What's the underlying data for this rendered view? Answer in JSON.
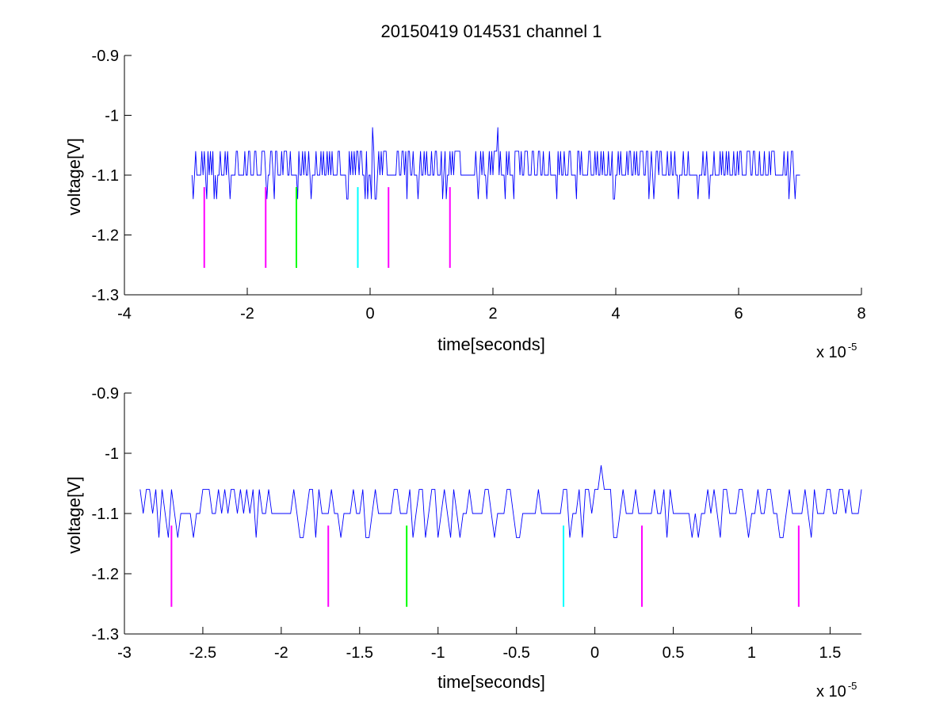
{
  "figure_title": "20150419 014531 channel 1",
  "colors": {
    "signal": "#0000ff",
    "magenta": "#ff00ff",
    "green": "#00ff00",
    "cyan": "#00ffff",
    "axis": "#000000",
    "background": "#ffffff"
  },
  "chart_data": [
    {
      "type": "line",
      "title": "20150419 014531 channel 1",
      "xlabel": "time[seconds]",
      "ylabel": "voltage[V]",
      "xlim": [
        -4,
        8
      ],
      "ylim": [
        -1.3,
        -0.9
      ],
      "y_reversed": true,
      "grid": false,
      "x_ticks": [
        -4,
        -2,
        0,
        2,
        4,
        6,
        8
      ],
      "x_tick_labels": [
        "-4",
        "-2",
        "0",
        "2",
        "4",
        "6",
        "8"
      ],
      "y_ticks": [
        -0.9,
        -1,
        -1.1,
        -1.2,
        -1.3
      ],
      "y_tick_labels": [
        "-0.9",
        "-1",
        "-1.1",
        "-1.2",
        "-1.3"
      ],
      "x_multiplier": {
        "base": "x 10",
        "exponent": "-5"
      },
      "series": [
        {
          "style": "line",
          "color": "#0000ff",
          "x_range": [
            -2.9,
            7.0
          ],
          "baseline": -1.1,
          "levels": [
            -1.06,
            -1.1,
            -1.14
          ],
          "spikes": [
            {
              "x": 0.05,
              "y": -1.02
            },
            {
              "x": 2.08,
              "y": -1.02
            }
          ]
        },
        {
          "style": "markers",
          "y_range": [
            -1.12,
            -1.255
          ],
          "markers": [
            {
              "x": -2.7,
              "color": "#ff00ff"
            },
            {
              "x": -1.7,
              "color": "#ff00ff"
            },
            {
              "x": -1.2,
              "color": "#00ff00"
            },
            {
              "x": -0.2,
              "color": "#00ffff"
            },
            {
              "x": 0.3,
              "color": "#ff00ff"
            },
            {
              "x": 1.3,
              "color": "#ff00ff"
            }
          ]
        }
      ]
    },
    {
      "type": "line",
      "xlabel": "time[seconds]",
      "ylabel": "voltage[V]",
      "xlim": [
        -3.0,
        1.7
      ],
      "ylim": [
        -1.3,
        -0.9
      ],
      "y_reversed": true,
      "grid": false,
      "x_ticks": [
        -3,
        -2.5,
        -2,
        -1.5,
        -1,
        -0.5,
        0,
        0.5,
        1,
        1.5
      ],
      "x_tick_labels": [
        "-3",
        "-2.5",
        "-2",
        "-1.5",
        "-1",
        "-0.5",
        "0",
        "0.5",
        "1",
        "1.5"
      ],
      "y_ticks": [
        -0.9,
        -1,
        -1.1,
        -1.2,
        -1.3
      ],
      "y_tick_labels": [
        "-0.9",
        "-1",
        "-1.1",
        "-1.2",
        "-1.3"
      ],
      "x_multiplier": {
        "base": "x 10",
        "exponent": "-5"
      },
      "series": [
        {
          "style": "line",
          "color": "#0000ff",
          "x_range": [
            -2.9,
            1.7
          ],
          "baseline": -1.1,
          "levels": [
            -1.06,
            -1.1,
            -1.14
          ],
          "spikes": [
            {
              "x": 0.05,
              "y": -1.02
            }
          ]
        },
        {
          "style": "markers",
          "y_range": [
            -1.12,
            -1.255
          ],
          "markers": [
            {
              "x": -2.7,
              "color": "#ff00ff"
            },
            {
              "x": -1.7,
              "color": "#ff00ff"
            },
            {
              "x": -1.2,
              "color": "#00ff00"
            },
            {
              "x": -0.2,
              "color": "#00ffff"
            },
            {
              "x": 0.3,
              "color": "#ff00ff"
            },
            {
              "x": 1.3,
              "color": "#ff00ff"
            }
          ]
        }
      ]
    }
  ]
}
